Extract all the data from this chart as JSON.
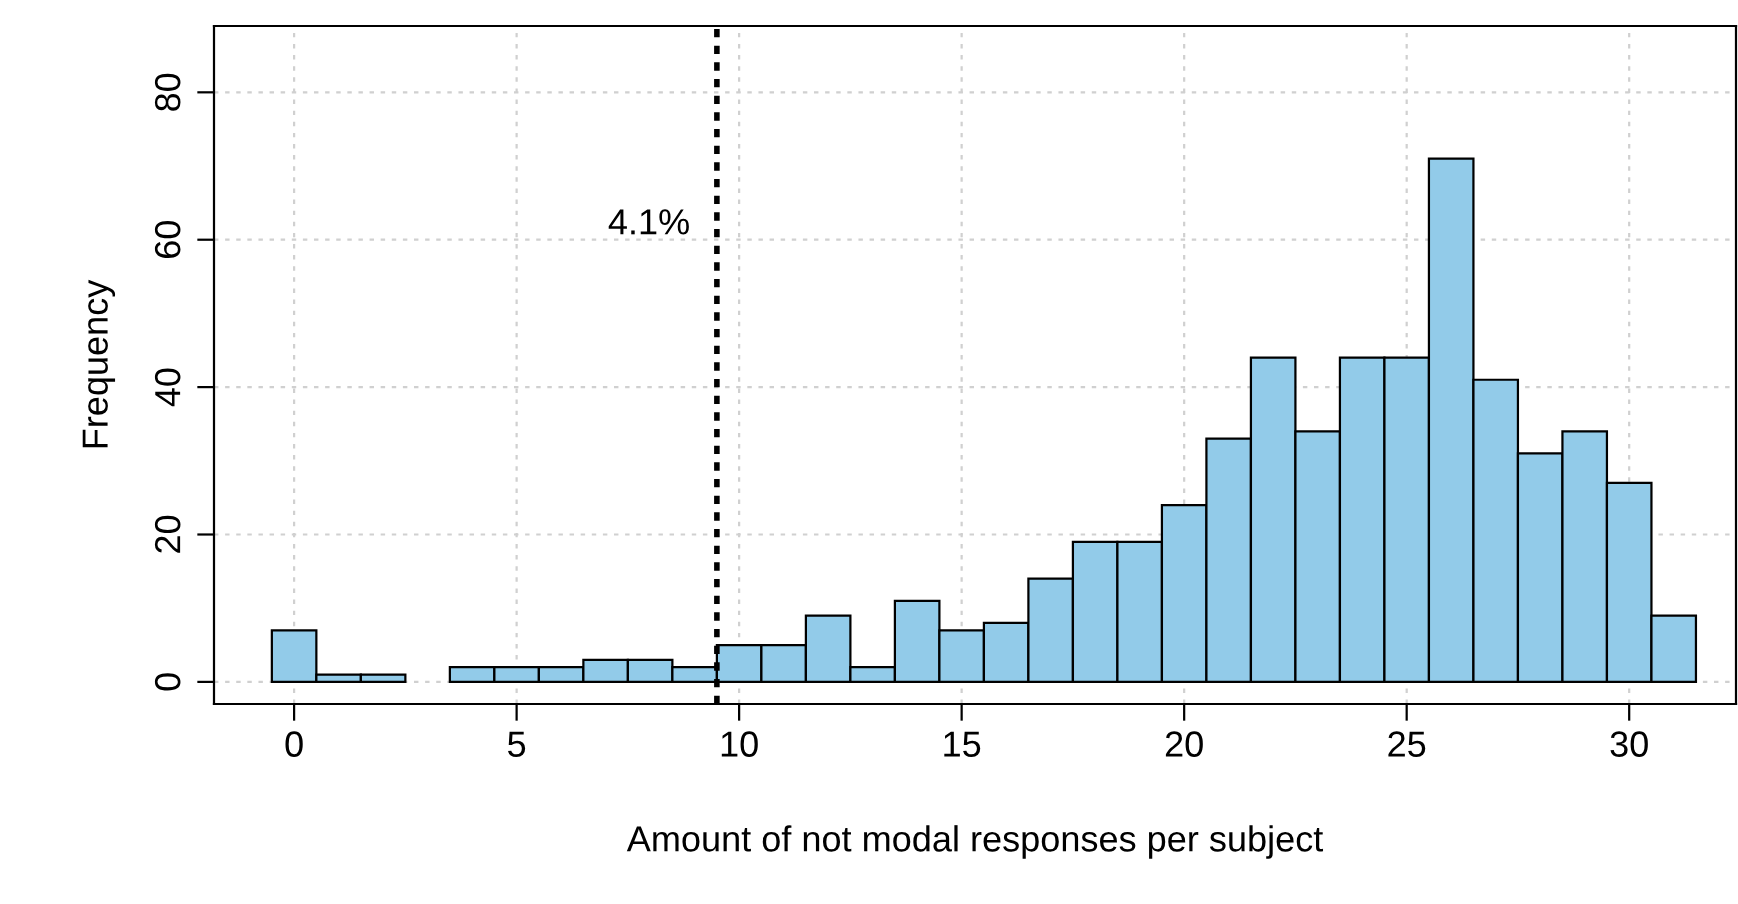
{
  "chart_data": {
    "type": "histogram",
    "xlabel": "Amount of not modal responses per subject",
    "ylabel": "Frequency",
    "bins": [
      -0.5,
      0.5,
      1.5,
      2.5,
      3.5,
      4.5,
      5.5,
      6.5,
      7.5,
      8.5,
      9.5,
      10.5,
      11.5,
      12.5,
      13.5,
      14.5,
      15.5,
      16.5,
      17.5,
      18.5,
      19.5,
      20.5,
      21.5,
      22.5,
      23.5,
      24.5,
      25.5,
      26.5,
      27.5,
      28.5,
      29.5,
      30.5,
      31.5
    ],
    "values": [
      7,
      1,
      1,
      0,
      2,
      2,
      2,
      3,
      3,
      2,
      5,
      5,
      9,
      2,
      11,
      7,
      8,
      14,
      19,
      19,
      24,
      33,
      44,
      34,
      44,
      44,
      71,
      41,
      31,
      34,
      27,
      9
    ],
    "color": "#92cbe9",
    "xlim": [
      -1.8,
      32.4
    ],
    "ylim": [
      -3,
      89
    ],
    "xticks": [
      0,
      5,
      10,
      15,
      20,
      25,
      30
    ],
    "yticks": [
      0,
      20,
      40,
      60,
      80
    ],
    "grid": true,
    "ref_lines": [
      {
        "axis": "x",
        "value": 9.5,
        "color": "#000000",
        "line_style": "dotted"
      }
    ],
    "annotations": [
      {
        "text": "4.1%",
        "x": 9.5,
        "y": 62
      }
    ]
  }
}
